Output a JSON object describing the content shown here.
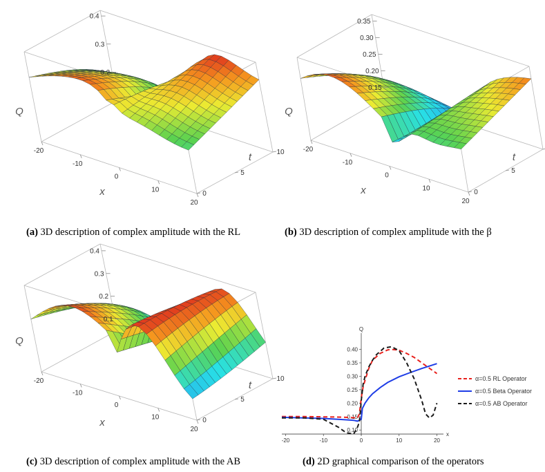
{
  "captions": {
    "a": {
      "label": "(a)",
      "text": " 3D description of complex amplitude with the RL"
    },
    "b": {
      "label": "(b)",
      "text": " 3D description of complex amplitude with the β"
    },
    "c": {
      "label": "(c)",
      "text": " 3D description of complex amplitude with the AB"
    },
    "d": {
      "label": "(d)",
      "text": " 2D graphical comparison of the operators"
    }
  },
  "chart_data": [
    {
      "type": "surface",
      "id": "a",
      "operator": "RL",
      "zlabel": "Q",
      "xlabel": "x",
      "ylabel": "t",
      "z_ticks": [
        "0.4",
        "0.3",
        "0.2"
      ],
      "x_ticks": [
        "-20",
        "-10",
        "0",
        "10",
        "20"
      ],
      "t_ticks": [
        "0",
        "5",
        "10"
      ],
      "xlim": [
        -20,
        20
      ],
      "tlim": [
        0,
        10
      ],
      "zlim": [
        0.1,
        0.42
      ],
      "peak_x": 8,
      "left_level": 0.15,
      "max_value": 0.4
    },
    {
      "type": "surface",
      "id": "b",
      "operator": "Beta",
      "zlabel": "Q",
      "xlabel": "x",
      "ylabel": "t",
      "z_ticks": [
        "0.35",
        "0.30",
        "0.25",
        "0.20",
        "0.15"
      ],
      "x_ticks": [
        "-20",
        "-10",
        "0",
        "10",
        "20"
      ],
      "t_ticks": [
        "0",
        "5",
        "10"
      ],
      "xlim": [
        -20,
        20
      ],
      "tlim": [
        0,
        10
      ],
      "zlim": [
        0.12,
        0.37
      ],
      "left_level": 0.15,
      "max_value": 0.35
    },
    {
      "type": "surface",
      "id": "c",
      "operator": "AB",
      "zlabel": "Q",
      "xlabel": "x",
      "ylabel": "t",
      "z_ticks": [
        "0.4",
        "0.3",
        "0.2",
        "0.1"
      ],
      "x_ticks": [
        "-20",
        "-10",
        "0",
        "10",
        "20"
      ],
      "t_ticks": [
        "0",
        "5",
        "10"
      ],
      "xlim": [
        -20,
        20
      ],
      "tlim": [
        0,
        10
      ],
      "zlim": [
        0.05,
        0.43
      ],
      "peak_x": 8,
      "left_level": 0.15,
      "max_value": 0.41
    },
    {
      "type": "line",
      "id": "d",
      "ylabel": "Q",
      "xlabel": "x",
      "x_ticks": [
        "-20",
        "-10",
        "0",
        "10",
        "20"
      ],
      "y_ticks": [
        "0.40",
        "0.35",
        "0.30",
        "0.25",
        "0.20",
        "0.15",
        "0.10"
      ],
      "xlim": [
        -21,
        21
      ],
      "ylim": [
        0.08,
        0.44
      ],
      "series": [
        {
          "name": "α=0.5 RL Operator",
          "color": "#e8201c",
          "dash": "dashed",
          "x": [
            -21,
            -15,
            -10,
            -5,
            -1,
            -0.5,
            0,
            0.5,
            1,
            2,
            3,
            5,
            7,
            8,
            10,
            12,
            14,
            16,
            18,
            20
          ],
          "y": [
            0.15,
            0.15,
            0.149,
            0.148,
            0.145,
            0.16,
            0.22,
            0.26,
            0.285,
            0.33,
            0.36,
            0.385,
            0.398,
            0.4,
            0.397,
            0.385,
            0.37,
            0.35,
            0.33,
            0.31
          ]
        },
        {
          "name": "α=0.5 Beta Operator",
          "color": "#1e3de6",
          "dash": "solid",
          "x": [
            -21,
            -15,
            -10,
            -5,
            -2,
            -1,
            0,
            0.3,
            1,
            2,
            3,
            5,
            7,
            10,
            13,
            16,
            18,
            20
          ],
          "y": [
            0.147,
            0.145,
            0.143,
            0.139,
            0.136,
            0.133,
            0.14,
            0.18,
            0.2,
            0.22,
            0.235,
            0.258,
            0.277,
            0.298,
            0.314,
            0.329,
            0.338,
            0.347
          ]
        },
        {
          "name": "α=0.5 AB Operator",
          "color": "#1a1a1a",
          "dash": "dashed",
          "x": [
            -21,
            -15,
            -10,
            -6,
            -4,
            -2,
            -1,
            -0.5,
            0,
            0.5,
            1,
            2,
            3,
            4,
            6,
            8,
            10,
            12,
            14,
            16,
            17,
            18,
            19,
            20
          ],
          "y": [
            0.145,
            0.145,
            0.14,
            0.11,
            0.09,
            0.085,
            0.11,
            0.13,
            0.21,
            0.27,
            0.3,
            0.335,
            0.36,
            0.38,
            0.405,
            0.41,
            0.395,
            0.35,
            0.29,
            0.21,
            0.16,
            0.145,
            0.155,
            0.2
          ]
        }
      ]
    }
  ]
}
